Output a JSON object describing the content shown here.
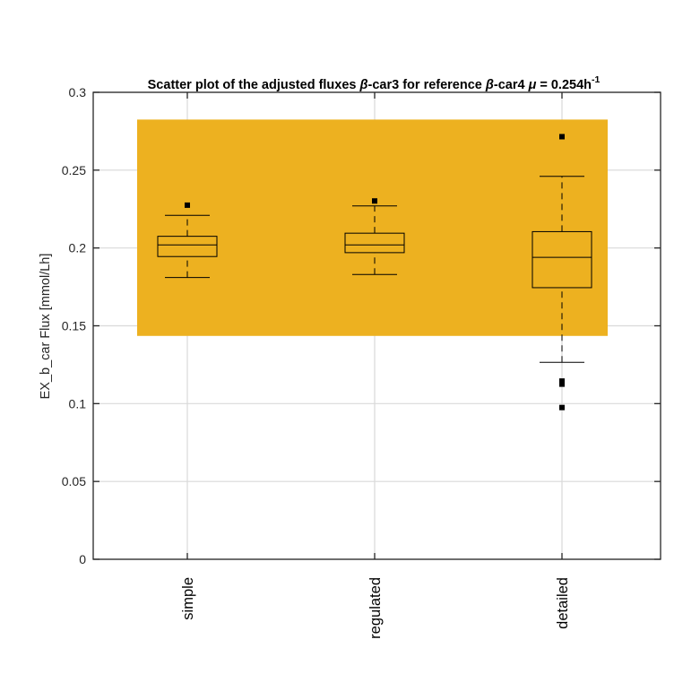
{
  "chart_data": {
    "type": "boxplot",
    "title": {
      "prefix": "Scatter plot of the adjusted fluxes ",
      "beta1": "β",
      "mid1": "-car3 for reference ",
      "beta2": "β",
      "mid2": "-car4 ",
      "mu": "μ",
      "suffix": " = 0.254h",
      "superscript": "-1"
    },
    "ylabel": "EX_b_car Flux [mmol/Lh]",
    "ylim": [
      0,
      0.3
    ],
    "yticks": [
      0,
      0.05,
      0.1,
      0.15,
      0.2,
      0.25,
      0.3
    ],
    "ytick_labels": [
      "0",
      "0.05",
      "0.1",
      "0.15",
      "0.2",
      "0.25",
      "0.3"
    ],
    "grid": true,
    "categories": [
      "simple",
      "regulated",
      "detailed"
    ],
    "reference_band": {
      "y_min": 0.1435,
      "y_max": 0.2825,
      "color": "#EDB120"
    },
    "boxes": [
      {
        "name": "simple",
        "whisker_low": 0.181,
        "q1": 0.1945,
        "median": 0.202,
        "q3": 0.2075,
        "whisker_high": 0.221,
        "outliers": [
          0.2275
        ]
      },
      {
        "name": "regulated",
        "whisker_low": 0.183,
        "q1": 0.197,
        "median": 0.202,
        "q3": 0.2095,
        "whisker_high": 0.227,
        "outliers": [
          0.2302
        ]
      },
      {
        "name": "detailed",
        "whisker_low": 0.1265,
        "q1": 0.1745,
        "median": 0.194,
        "q3": 0.2105,
        "whisker_high": 0.246,
        "outliers": [
          0.2715,
          0.1145,
          0.1125,
          0.0975
        ]
      }
    ]
  }
}
